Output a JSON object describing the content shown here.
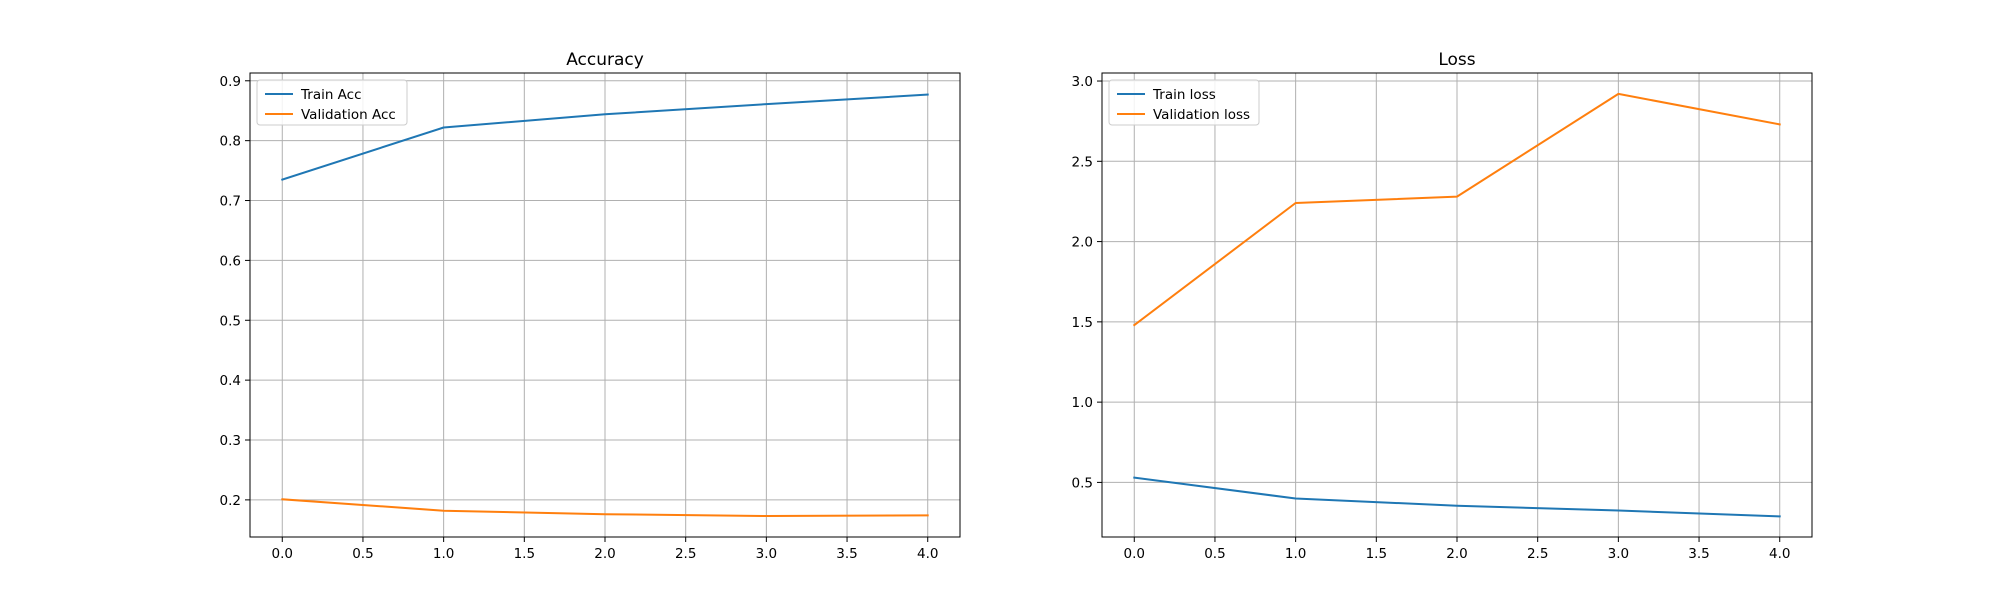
{
  "chart_data": [
    {
      "type": "line",
      "title": "Accuracy",
      "xlabel": "",
      "ylabel": "",
      "x": [
        0,
        1,
        2,
        3,
        4
      ],
      "xlim": [
        -0.2,
        4.2
      ],
      "ylim": [
        0.138,
        0.913
      ],
      "xticks": [
        "0.0",
        "0.5",
        "1.0",
        "1.5",
        "2.0",
        "2.5",
        "3.0",
        "3.5",
        "4.0"
      ],
      "yticks": [
        "0.2",
        "0.3",
        "0.4",
        "0.5",
        "0.6",
        "0.7",
        "0.8",
        "0.9"
      ],
      "grid": true,
      "legend_position": "upper-left",
      "series": [
        {
          "name": "Train Acc",
          "color": "#1f77b4",
          "values": [
            0.735,
            0.822,
            0.844,
            0.861,
            0.877
          ]
        },
        {
          "name": "Validation Acc",
          "color": "#ff7f0e",
          "values": [
            0.201,
            0.182,
            0.176,
            0.173,
            0.174
          ]
        }
      ]
    },
    {
      "type": "line",
      "title": "Loss",
      "xlabel": "",
      "ylabel": "",
      "x": [
        0,
        1,
        2,
        3,
        4
      ],
      "xlim": [
        -0.2,
        4.2
      ],
      "ylim": [
        0.16,
        3.05
      ],
      "xticks": [
        "0.0",
        "0.5",
        "1.0",
        "1.5",
        "2.0",
        "2.5",
        "3.0",
        "3.5",
        "4.0"
      ],
      "yticks": [
        "0.5",
        "1.0",
        "1.5",
        "2.0",
        "2.5",
        "3.0"
      ],
      "grid": true,
      "legend_position": "upper-left",
      "series": [
        {
          "name": "Train loss",
          "color": "#1f77b4",
          "values": [
            0.53,
            0.4,
            0.355,
            0.325,
            0.288
          ]
        },
        {
          "name": "Validation loss",
          "color": "#ff7f0e",
          "values": [
            1.48,
            2.24,
            2.28,
            2.92,
            2.73
          ]
        }
      ]
    }
  ]
}
